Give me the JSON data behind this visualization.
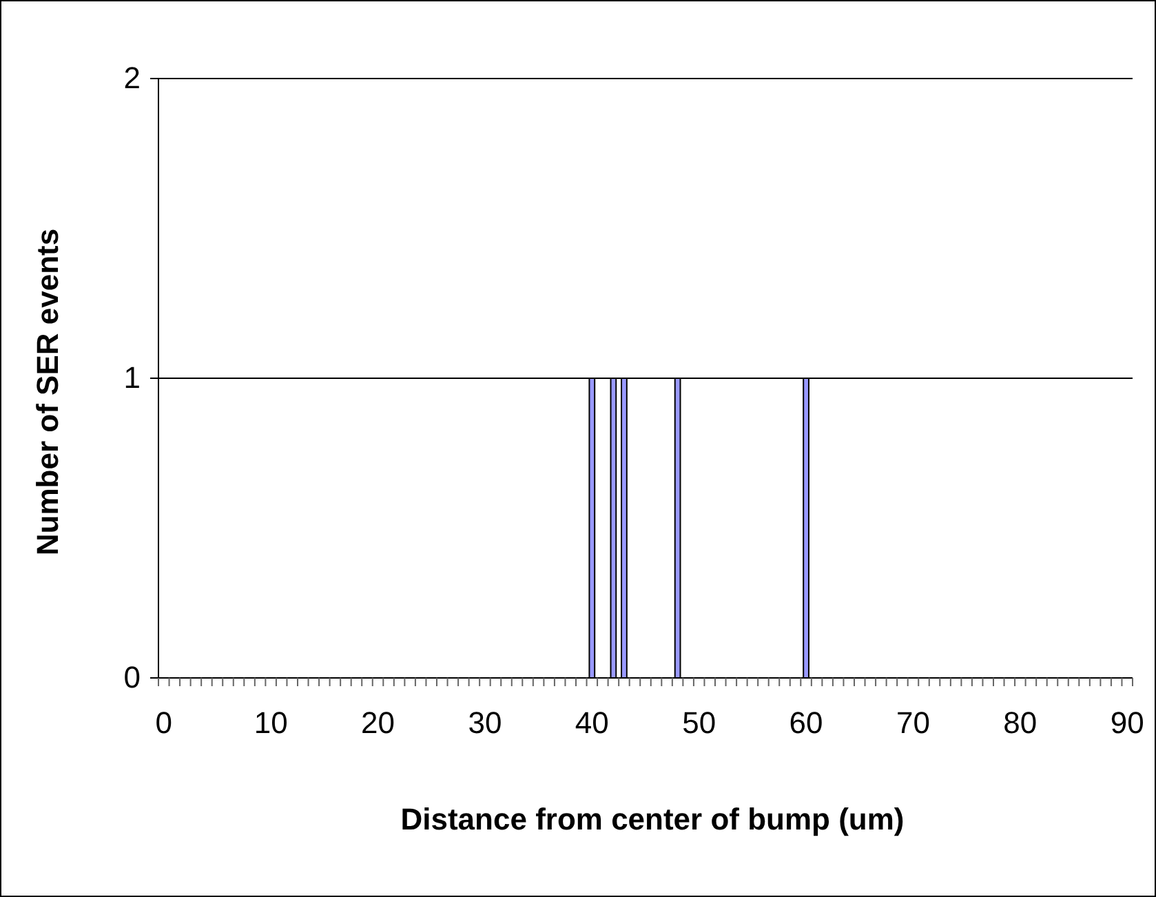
{
  "chart_data": {
    "type": "bar",
    "xlabel": "Distance from center of bump (um)",
    "ylabel": "Number of SER events",
    "categories": [
      "0",
      null,
      null,
      null,
      null,
      null,
      null,
      null,
      null,
      null,
      "10",
      null,
      null,
      null,
      null,
      null,
      null,
      null,
      null,
      null,
      "20",
      null,
      null,
      null,
      null,
      null,
      null,
      null,
      null,
      null,
      "30",
      null,
      null,
      null,
      null,
      null,
      null,
      null,
      null,
      null,
      "40",
      null,
      null,
      null,
      null,
      null,
      null,
      null,
      null,
      null,
      "50",
      null,
      null,
      null,
      null,
      null,
      null,
      null,
      null,
      null,
      "60",
      null,
      null,
      null,
      null,
      null,
      null,
      null,
      null,
      null,
      "70",
      null,
      null,
      null,
      null,
      null,
      null,
      null,
      null,
      null,
      "80",
      null,
      null,
      null,
      null,
      null,
      null,
      null,
      null,
      null,
      "90"
    ],
    "values": [
      0,
      0,
      0,
      0,
      0,
      0,
      0,
      0,
      0,
      0,
      0,
      0,
      0,
      0,
      0,
      0,
      0,
      0,
      0,
      0,
      0,
      0,
      0,
      0,
      0,
      0,
      0,
      0,
      0,
      0,
      0,
      0,
      0,
      0,
      0,
      0,
      0,
      0,
      0,
      0,
      1,
      0,
      1,
      1,
      0,
      0,
      0,
      0,
      1,
      0,
      0,
      0,
      0,
      0,
      0,
      0,
      0,
      0,
      0,
      0,
      1,
      0,
      0,
      0,
      0,
      0,
      0,
      0,
      0,
      0,
      0,
      0,
      0,
      0,
      0,
      0,
      0,
      0,
      0,
      0,
      0,
      0,
      0,
      0,
      0,
      0,
      0,
      0,
      0,
      0,
      0
    ],
    "color": "#9999ff",
    "ylim": [
      0,
      2
    ],
    "yticks": [
      0,
      1,
      2
    ],
    "grid": "y"
  }
}
